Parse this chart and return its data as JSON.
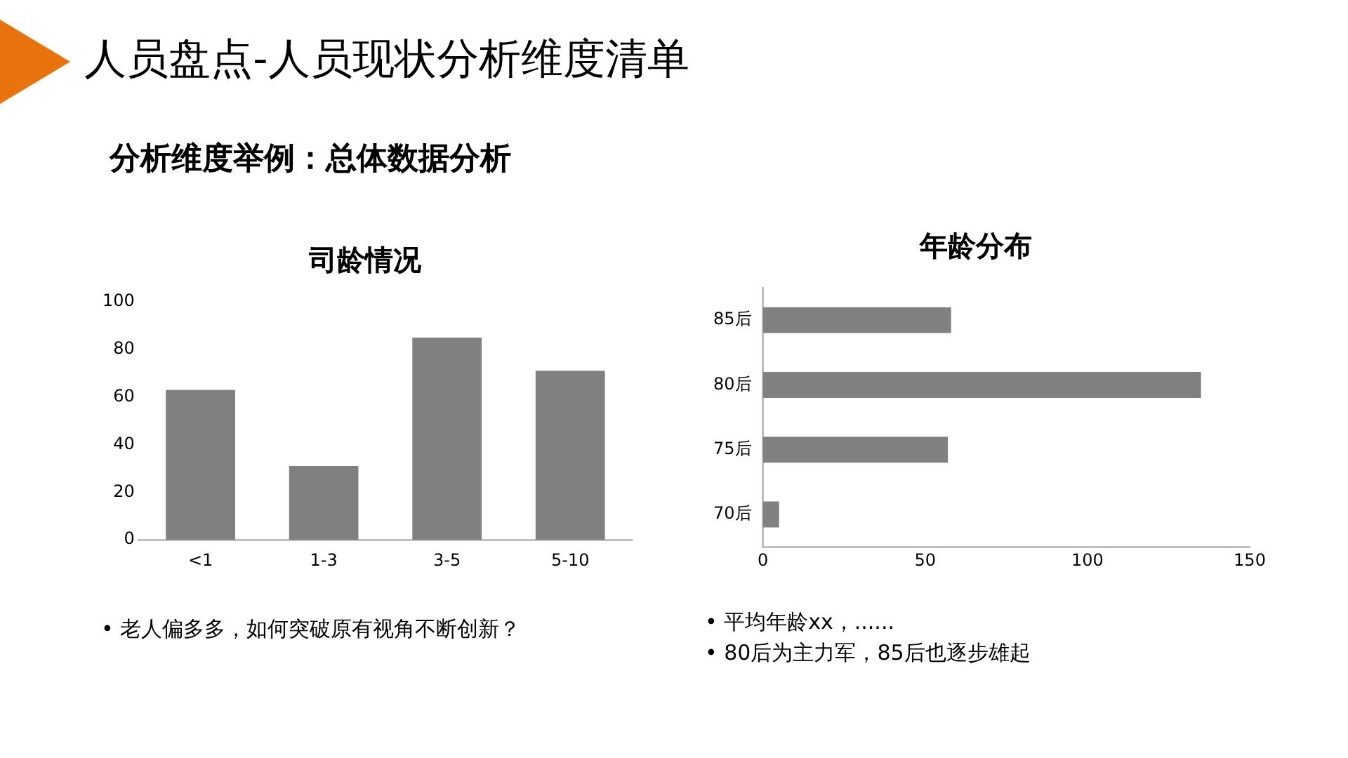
{
  "chart_data": [
    {
      "type": "other",
      "title": "人员盘点-人员现状分析维度清单",
      "subtitle": "分析维度举例：总体数据分析"
    },
    {
      "type": "bar",
      "title": "司龄情况",
      "categories": [
        "<1",
        "1-3",
        "3-5",
        "5-10"
      ],
      "values": [
        63,
        31,
        85,
        71
      ],
      "color": "#808080",
      "ylim": [
        0,
        100
      ],
      "yticks": [
        0,
        20,
        40,
        60,
        80,
        100
      ],
      "grid": false,
      "legend": false,
      "annotations": [
        "• 老人偏多多，如何突破原有视角不断创新？"
      ]
    },
    {
      "type": "bar",
      "orientation": "horizontal",
      "title": "年龄分布",
      "categories": [
        "85后",
        "80后",
        "75后",
        "70后"
      ],
      "values": [
        58,
        135,
        57,
        5
      ],
      "color": "#808080",
      "xlim": [
        0,
        150
      ],
      "xticks": [
        0,
        50,
        100,
        150
      ],
      "grid": false,
      "legend": false,
      "annotations": [
        "• 平均年龄xx，......",
        "• 80后为主力军，85后也逐步雄起"
      ]
    }
  ]
}
